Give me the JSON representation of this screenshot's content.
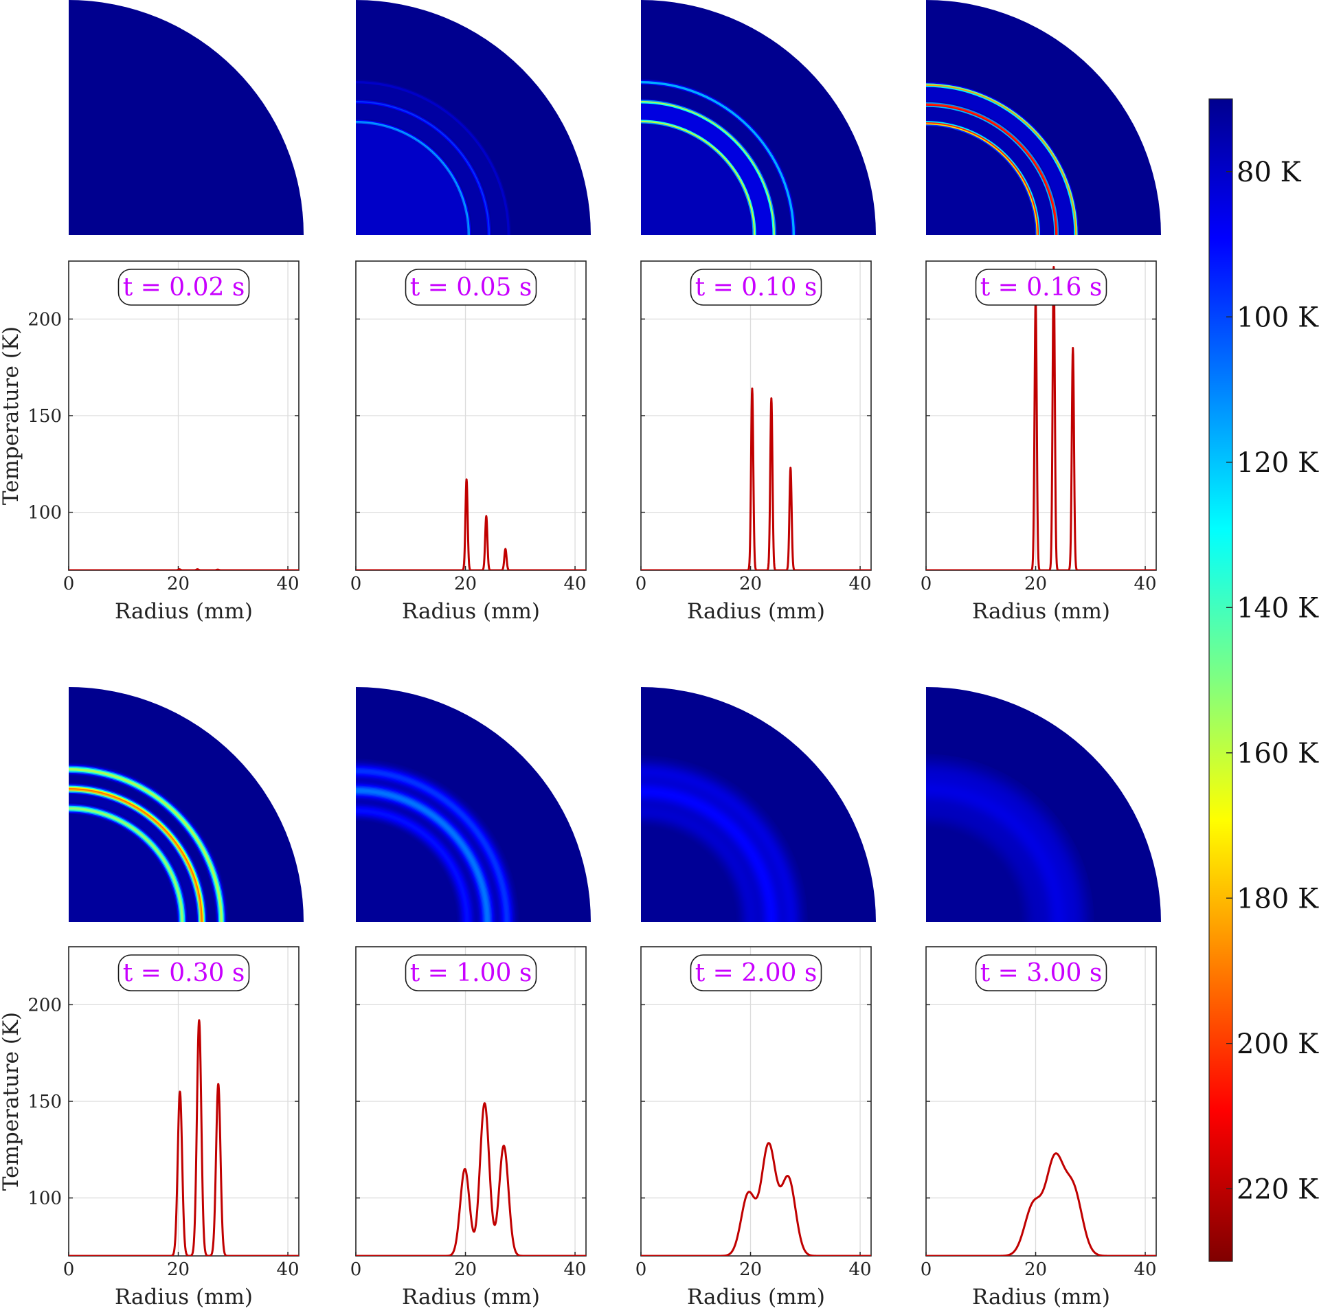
{
  "chart_data": {
    "type": "line",
    "x_axis_label": "Radius (mm)",
    "y_axis_label": "Temperature (K)",
    "x_ticks": [
      0,
      20,
      40
    ],
    "y_ticks": [
      100,
      150,
      200
    ],
    "x_range": [
      0,
      42
    ],
    "y_range": [
      70,
      230
    ],
    "grid": true,
    "colorbar": {
      "colormap": "jet",
      "range": [
        70,
        230
      ],
      "tick_values": [
        80,
        100,
        120,
        140,
        160,
        180,
        200,
        220
      ],
      "tick_labels": [
        "80 K",
        "100 K",
        "120 K",
        "140 K",
        "160 K",
        "180 K",
        "200 K",
        "220 K"
      ],
      "orientation": "vertical, reversed (low at top)"
    },
    "panels": [
      {
        "time_label": "t = 0.02 s",
        "baseline": 70,
        "peaks": [
          [
            20.2,
            0.2,
            0.5
          ],
          [
            23.5,
            0.2,
            0.5
          ],
          [
            27.2,
            0.2,
            0.3
          ]
        ]
      },
      {
        "time_label": "t = 0.05 s",
        "baseline": 70,
        "peaks": [
          [
            20.2,
            0.2,
            47
          ],
          [
            23.8,
            0.2,
            28
          ],
          [
            27.3,
            0.2,
            11
          ]
        ]
      },
      {
        "time_label": "t = 0.10 s",
        "baseline": 70,
        "peaks": [
          [
            20.3,
            0.2,
            94
          ],
          [
            23.8,
            0.2,
            89
          ],
          [
            27.3,
            0.2,
            53
          ]
        ]
      },
      {
        "time_label": "t = 0.16 s",
        "baseline": 70,
        "peaks": [
          [
            20.0,
            0.2,
            140
          ],
          [
            23.3,
            0.2,
            157
          ],
          [
            26.8,
            0.2,
            115
          ]
        ]
      },
      {
        "time_label": "t = 0.30 s",
        "baseline": 70,
        "peaks": [
          [
            20.3,
            0.4,
            85
          ],
          [
            23.8,
            0.4,
            122
          ],
          [
            27.3,
            0.4,
            89
          ]
        ]
      },
      {
        "time_label": "t = 1.00 s",
        "baseline": 70,
        "peaks": [
          [
            19.9,
            0.85,
            45
          ],
          [
            23.5,
            0.85,
            79
          ],
          [
            27.0,
            0.85,
            57
          ]
        ]
      },
      {
        "time_label": "t = 2.00 s",
        "baseline": 70,
        "peaks": [
          [
            19.6,
            1.3,
            32
          ],
          [
            23.3,
            1.3,
            57
          ],
          [
            26.9,
            1.3,
            40
          ]
        ]
      },
      {
        "time_label": "t = 3.00 s",
        "baseline": 70,
        "peaks": [
          [
            19.6,
            1.6,
            26
          ],
          [
            23.5,
            1.6,
            48
          ],
          [
            26.9,
            1.6,
            33
          ]
        ]
      }
    ]
  }
}
